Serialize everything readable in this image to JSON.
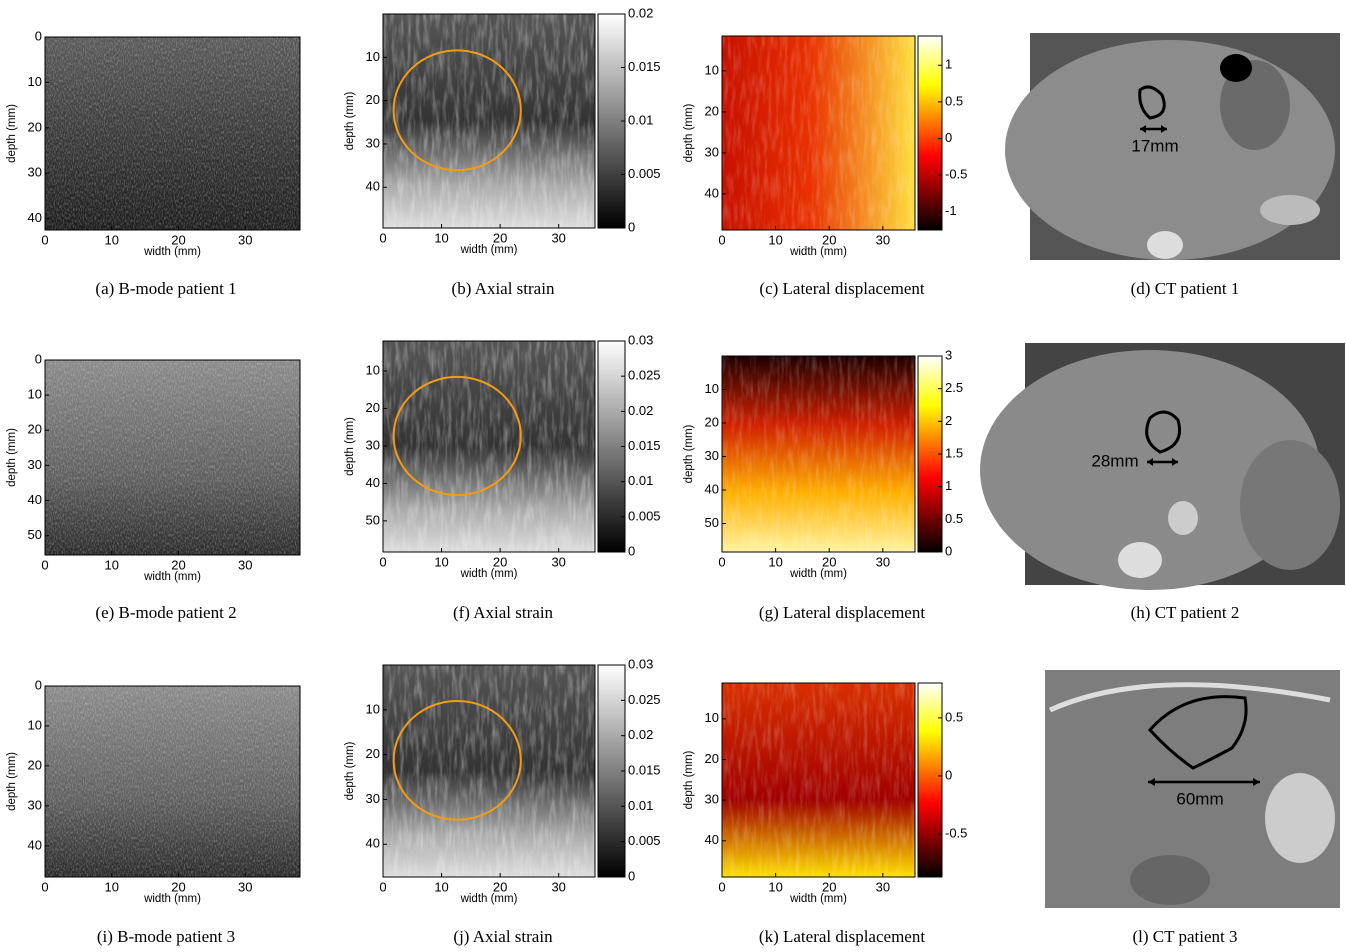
{
  "panels": [
    {
      "caption": "(a)  B-mode patient 1",
      "xlabel": "width (mm)",
      "ylabel": "depth (mm)",
      "xlim": [
        0,
        38.2
      ],
      "ylim": [
        0,
        42.5
      ],
      "xticks": [
        0,
        10,
        20,
        30
      ],
      "yticks": [
        0,
        10,
        20,
        30,
        40
      ]
    },
    {
      "caption": "(b)  Axial strain",
      "xlabel": "width (mm)",
      "ylabel": "depth (mm)",
      "xlim": [
        0,
        36.2
      ],
      "ylim": [
        0,
        49.4
      ],
      "xticks": [
        0,
        10,
        20,
        30
      ],
      "yticks": [
        10,
        20,
        30,
        40
      ],
      "colorbar": {
        "lim": [
          0,
          0.02
        ],
        "ticks": [
          0,
          0.005,
          0.01,
          0.015,
          0.02
        ]
      }
    },
    {
      "caption": "(c)  Lateral displacement",
      "xlabel": "width (mm)",
      "ylabel": "depth (mm)",
      "xlim": [
        0,
        36
      ],
      "ylim": [
        1.5,
        48.8
      ],
      "xticks": [
        0,
        10,
        20,
        30
      ],
      "yticks": [
        10,
        20,
        30,
        40
      ],
      "colorbar": {
        "lim": [
          -1.25,
          1.4
        ],
        "ticks": [
          -1,
          -0.5,
          0,
          0.5,
          1
        ]
      }
    },
    {
      "caption": "(d)  CT patient 1",
      "annotation": "17mm"
    },
    {
      "caption": "(e)  B-mode patient 2",
      "xlabel": "width (mm)",
      "ylabel": "depth (mm)",
      "xlim": [
        0,
        38.2
      ],
      "ylim": [
        0,
        55.5
      ],
      "xticks": [
        0,
        10,
        20,
        30
      ],
      "yticks": [
        0,
        10,
        20,
        30,
        40,
        50
      ]
    },
    {
      "caption": "(f)  Axial strain",
      "xlabel": "width (mm)",
      "ylabel": "depth (mm)",
      "xlim": [
        0,
        36.2
      ],
      "ylim": [
        2,
        58.3
      ],
      "xticks": [
        0,
        10,
        20,
        30
      ],
      "yticks": [
        10,
        20,
        30,
        40,
        50
      ],
      "colorbar": {
        "lim": [
          0,
          0.03
        ],
        "ticks": [
          0,
          0.005,
          0.01,
          0.015,
          0.02,
          0.025,
          0.03
        ]
      }
    },
    {
      "caption": "(g)  Lateral displacement",
      "xlabel": "width (mm)",
      "ylabel": "depth (mm)",
      "xlim": [
        0,
        36
      ],
      "ylim": [
        0,
        58.5
      ],
      "xticks": [
        0,
        10,
        20,
        30
      ],
      "yticks": [
        10,
        20,
        30,
        40,
        50
      ],
      "colorbar": {
        "lim": [
          0,
          3
        ],
        "ticks": [
          0,
          0.5,
          1,
          1.5,
          2,
          2.5,
          3
        ]
      }
    },
    {
      "caption": "(h)  CT patient 2",
      "annotation": "28mm"
    },
    {
      "caption": "(i)  B-mode patient 3",
      "xlabel": "width (mm)",
      "ylabel": "depth (mm)",
      "xlim": [
        0,
        38.2
      ],
      "ylim": [
        0,
        47.8
      ],
      "xticks": [
        0,
        10,
        20,
        30
      ],
      "yticks": [
        0,
        10,
        20,
        30,
        40
      ]
    },
    {
      "caption": "(j)  Axial strain",
      "xlabel": "width (mm)",
      "ylabel": "depth (mm)",
      "xlim": [
        0,
        36.2
      ],
      "ylim": [
        0,
        47.3
      ],
      "xticks": [
        0,
        10,
        20,
        30
      ],
      "yticks": [
        10,
        20,
        30,
        40
      ],
      "colorbar": {
        "lim": [
          0,
          0.03
        ],
        "ticks": [
          0,
          0.005,
          0.01,
          0.015,
          0.02,
          0.025,
          0.03
        ]
      }
    },
    {
      "caption": "(k)  Lateral displacement",
      "xlabel": "width (mm)",
      "ylabel": "depth (mm)",
      "xlim": [
        0,
        36
      ],
      "ylim": [
        1.2,
        48.9
      ],
      "xticks": [
        0,
        10,
        20,
        30
      ],
      "yticks": [
        10,
        20,
        30,
        40
      ],
      "colorbar": {
        "lim": [
          -0.87,
          0.8
        ],
        "ticks": [
          -0.5,
          0,
          0.5
        ]
      }
    },
    {
      "caption": "(l)  CT patient 3",
      "annotation": "60mm"
    }
  ]
}
